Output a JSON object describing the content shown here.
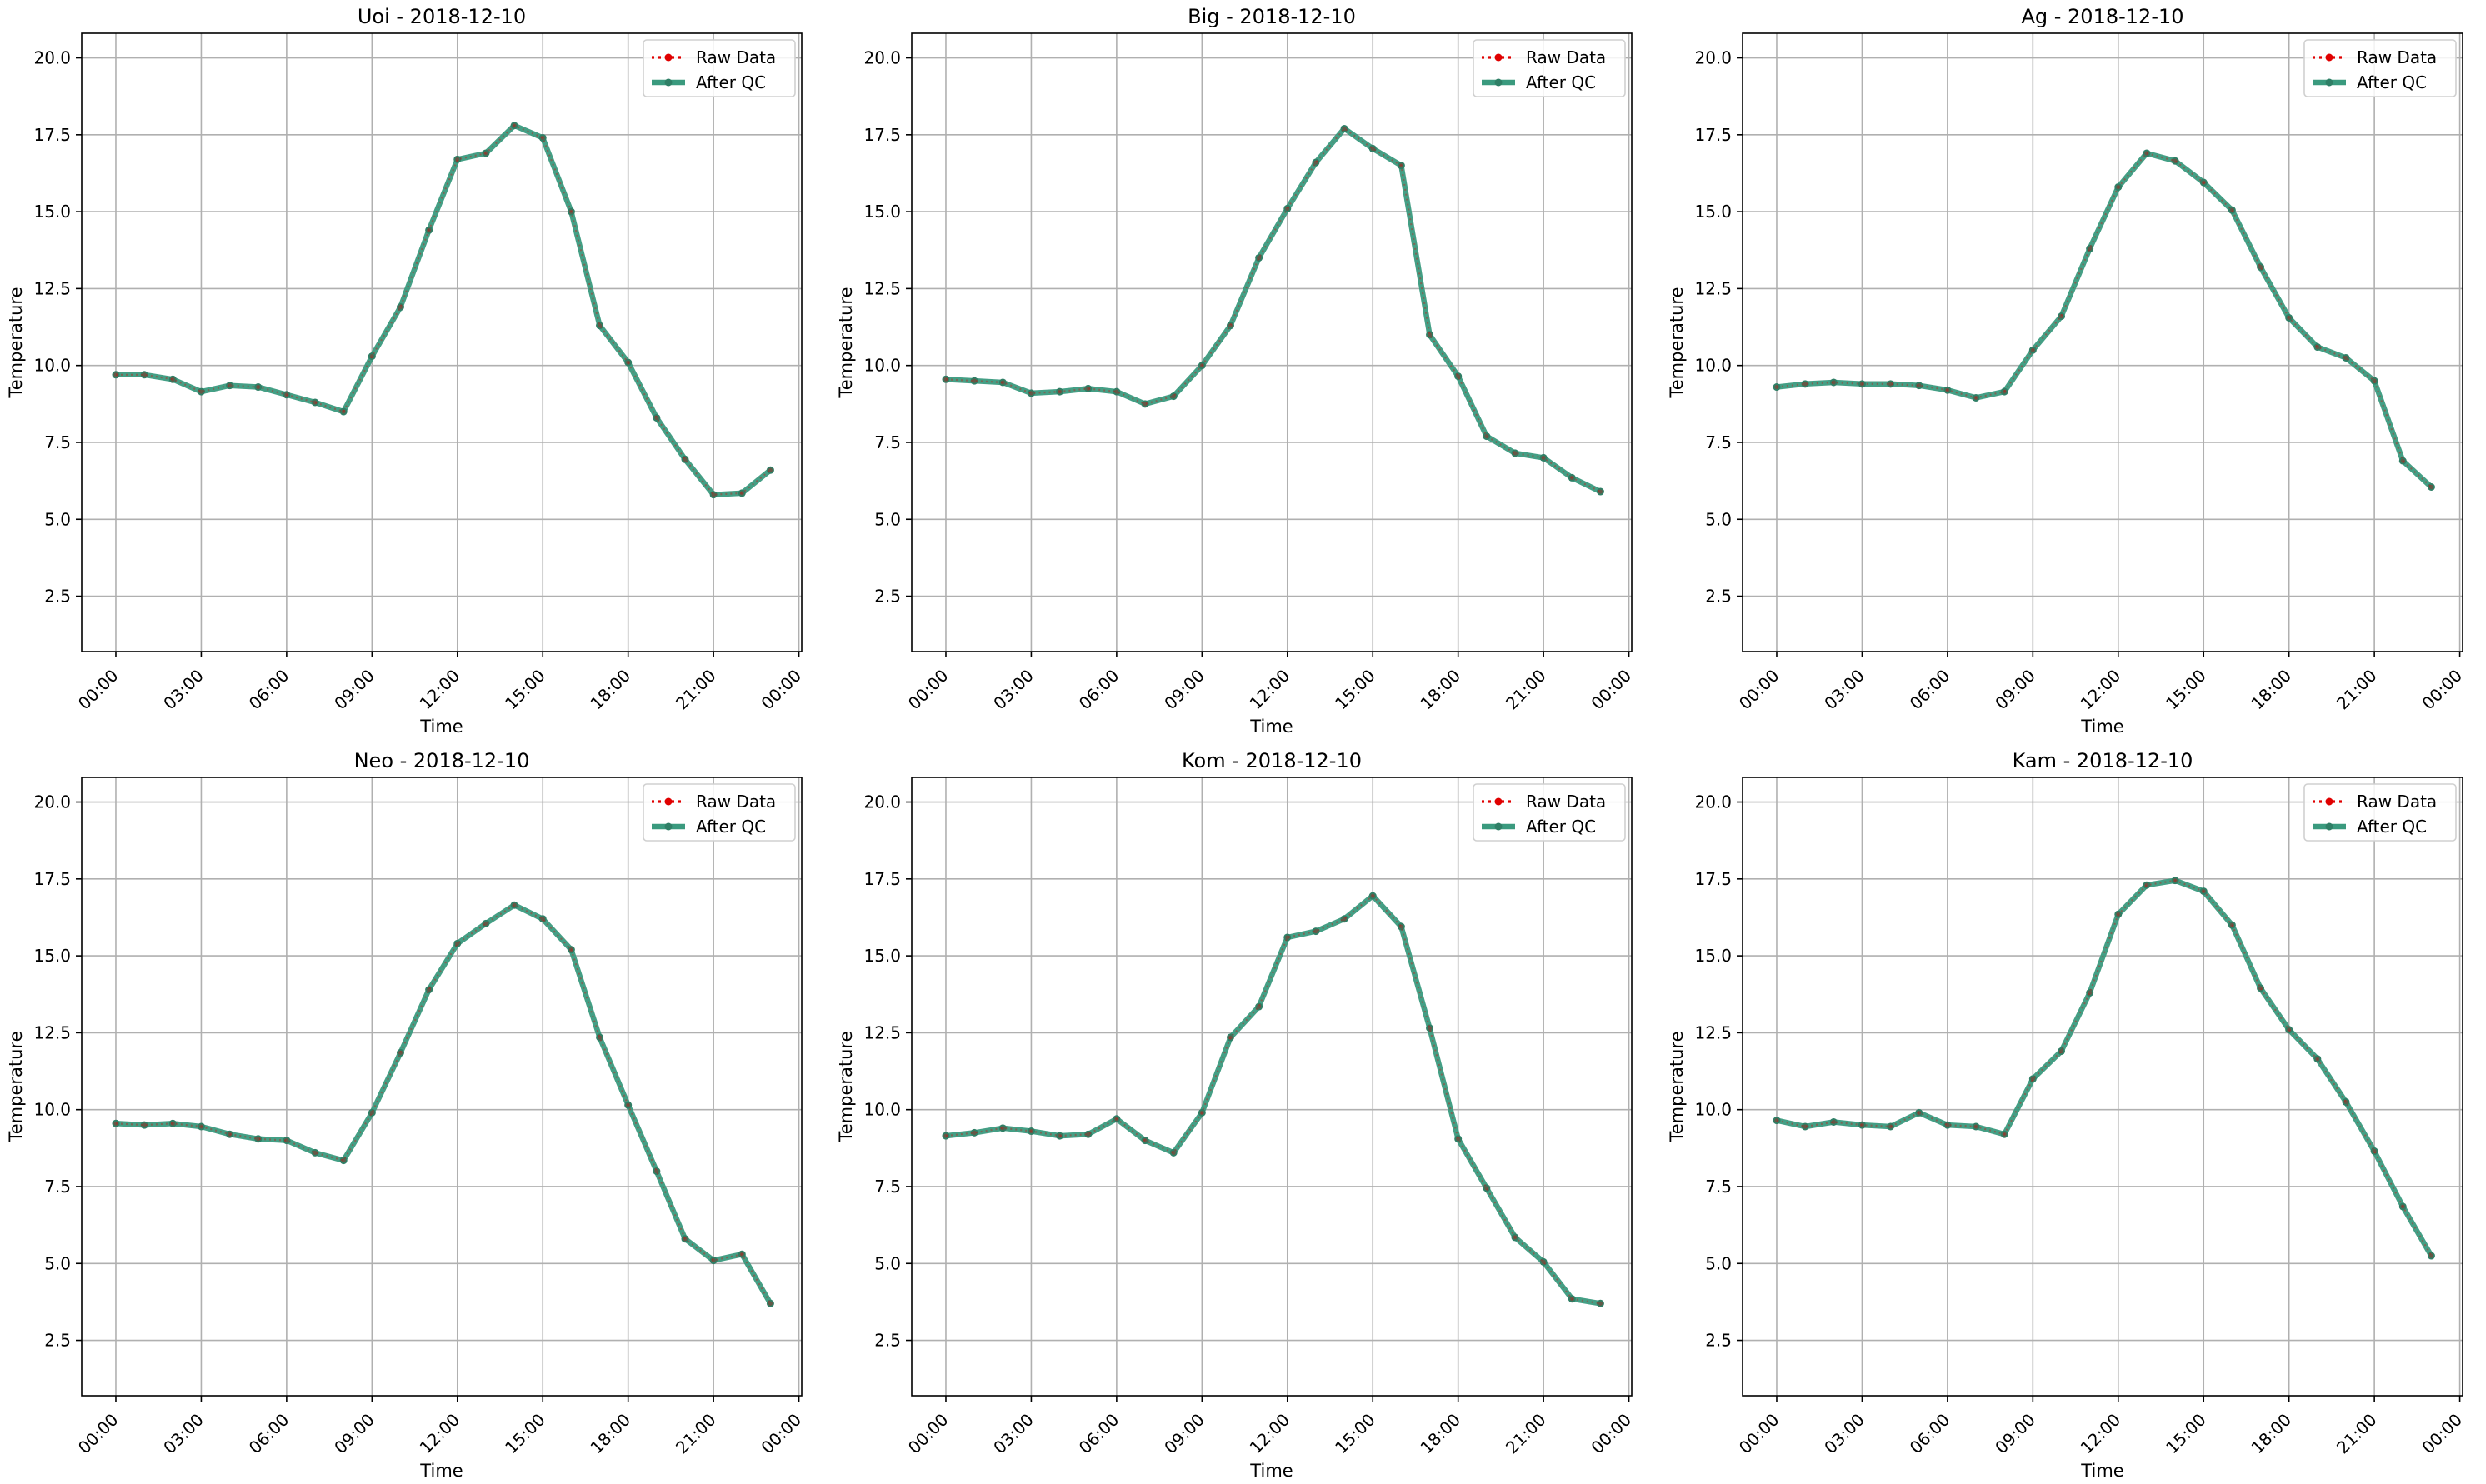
{
  "figure": {
    "legend_labels": [
      "Raw Data",
      "After QC"
    ],
    "legend_placement": "top-right",
    "colors": {
      "raw": "#e00000",
      "qc": "#3a9a7e",
      "qc_marker": "#2f7f66",
      "grid": "#b0b0b0",
      "axis": "#000000"
    }
  },
  "chart_data": [
    {
      "type": "line",
      "title": "Uoi - 2018-12-10",
      "xlabel": "Time",
      "ylabel": "Temperature",
      "xlim": [
        -1.2,
        24.1
      ],
      "ylim": [
        0.7,
        20.8
      ],
      "xticks": [
        0,
        3,
        6,
        9,
        12,
        15,
        18,
        21,
        24
      ],
      "xtick_labels": [
        "00:00",
        "03:00",
        "06:00",
        "09:00",
        "12:00",
        "15:00",
        "18:00",
        "21:00",
        "00:00"
      ],
      "yticks": [
        2.5,
        5.0,
        7.5,
        10.0,
        12.5,
        15.0,
        17.5,
        20.0
      ],
      "ytick_labels": [
        "2.5",
        "5.0",
        "7.5",
        "10.0",
        "12.5",
        "15.0",
        "17.5",
        "20.0"
      ],
      "grid": true,
      "x": [
        0,
        1,
        2,
        3,
        4,
        5,
        6,
        7,
        8,
        9,
        10,
        11,
        12,
        13,
        14,
        15,
        16,
        17,
        18,
        19,
        20,
        21,
        22,
        23
      ],
      "series": [
        {
          "name": "Raw Data",
          "values": [
            9.7,
            9.7,
            9.55,
            9.15,
            9.35,
            9.3,
            9.05,
            8.8,
            8.5,
            10.3,
            11.9,
            14.4,
            16.7,
            16.9,
            17.8,
            17.4,
            15.0,
            11.3,
            10.1,
            8.3,
            6.95,
            5.8,
            5.85,
            6.6
          ]
        },
        {
          "name": "After QC",
          "values": [
            9.7,
            9.7,
            9.55,
            9.15,
            9.35,
            9.3,
            9.05,
            8.8,
            8.5,
            10.3,
            11.9,
            14.4,
            16.7,
            16.9,
            17.8,
            17.4,
            15.0,
            11.3,
            10.1,
            8.3,
            6.95,
            5.8,
            5.85,
            6.6
          ]
        }
      ]
    },
    {
      "type": "line",
      "title": "Big - 2018-12-10",
      "xlabel": "Time",
      "ylabel": "Temperature",
      "xlim": [
        -1.2,
        24.1
      ],
      "ylim": [
        0.7,
        20.8
      ],
      "xticks": [
        0,
        3,
        6,
        9,
        12,
        15,
        18,
        21,
        24
      ],
      "xtick_labels": [
        "00:00",
        "03:00",
        "06:00",
        "09:00",
        "12:00",
        "15:00",
        "18:00",
        "21:00",
        "00:00"
      ],
      "yticks": [
        2.5,
        5.0,
        7.5,
        10.0,
        12.5,
        15.0,
        17.5,
        20.0
      ],
      "ytick_labels": [
        "2.5",
        "5.0",
        "7.5",
        "10.0",
        "12.5",
        "15.0",
        "17.5",
        "20.0"
      ],
      "grid": true,
      "x": [
        0,
        1,
        2,
        3,
        4,
        5,
        6,
        7,
        8,
        9,
        10,
        11,
        12,
        13,
        14,
        15,
        16,
        17,
        18,
        19,
        20,
        21,
        22,
        23
      ],
      "series": [
        {
          "name": "Raw Data",
          "values": [
            9.55,
            9.5,
            9.45,
            9.1,
            9.15,
            9.25,
            9.15,
            8.75,
            9.0,
            10.0,
            11.3,
            13.5,
            15.1,
            16.6,
            17.7,
            17.05,
            16.5,
            11.0,
            9.65,
            7.7,
            7.15,
            7.0,
            6.35,
            5.9
          ]
        },
        {
          "name": "After QC",
          "values": [
            9.55,
            9.5,
            9.45,
            9.1,
            9.15,
            9.25,
            9.15,
            8.75,
            9.0,
            10.0,
            11.3,
            13.5,
            15.1,
            16.6,
            17.7,
            17.05,
            16.5,
            11.0,
            9.65,
            7.7,
            7.15,
            7.0,
            6.35,
            5.9
          ]
        }
      ]
    },
    {
      "type": "line",
      "title": "Ag - 2018-12-10",
      "xlabel": "Time",
      "ylabel": "Temperature",
      "xlim": [
        -1.2,
        24.1
      ],
      "ylim": [
        0.7,
        20.8
      ],
      "xticks": [
        0,
        3,
        6,
        9,
        12,
        15,
        18,
        21,
        24
      ],
      "xtick_labels": [
        "00:00",
        "03:00",
        "06:00",
        "09:00",
        "12:00",
        "15:00",
        "18:00",
        "21:00",
        "00:00"
      ],
      "yticks": [
        2.5,
        5.0,
        7.5,
        10.0,
        12.5,
        15.0,
        17.5,
        20.0
      ],
      "ytick_labels": [
        "2.5",
        "5.0",
        "7.5",
        "10.0",
        "12.5",
        "15.0",
        "17.5",
        "20.0"
      ],
      "grid": true,
      "x": [
        0,
        1,
        2,
        3,
        4,
        5,
        6,
        7,
        8,
        9,
        10,
        11,
        12,
        13,
        14,
        15,
        16,
        17,
        18,
        19,
        20,
        21,
        22,
        23
      ],
      "series": [
        {
          "name": "Raw Data",
          "values": [
            9.3,
            9.4,
            9.45,
            9.4,
            9.4,
            9.35,
            9.2,
            8.95,
            9.15,
            10.5,
            11.6,
            13.8,
            15.8,
            16.9,
            16.65,
            15.95,
            15.05,
            13.2,
            11.55,
            10.6,
            10.25,
            9.5,
            6.9,
            6.05
          ]
        },
        {
          "name": "After QC",
          "values": [
            9.3,
            9.4,
            9.45,
            9.4,
            9.4,
            9.35,
            9.2,
            8.95,
            9.15,
            10.5,
            11.6,
            13.8,
            15.8,
            16.9,
            16.65,
            15.95,
            15.05,
            13.2,
            11.55,
            10.6,
            10.25,
            9.5,
            6.9,
            6.05
          ]
        }
      ]
    },
    {
      "type": "line",
      "title": "Neo - 2018-12-10",
      "xlabel": "Time",
      "ylabel": "Temperature",
      "xlim": [
        -1.2,
        24.1
      ],
      "ylim": [
        0.7,
        20.8
      ],
      "xticks": [
        0,
        3,
        6,
        9,
        12,
        15,
        18,
        21,
        24
      ],
      "xtick_labels": [
        "00:00",
        "03:00",
        "06:00",
        "09:00",
        "12:00",
        "15:00",
        "18:00",
        "21:00",
        "00:00"
      ],
      "yticks": [
        2.5,
        5.0,
        7.5,
        10.0,
        12.5,
        15.0,
        17.5,
        20.0
      ],
      "ytick_labels": [
        "2.5",
        "5.0",
        "7.5",
        "10.0",
        "12.5",
        "15.0",
        "17.5",
        "20.0"
      ],
      "grid": true,
      "x": [
        0,
        1,
        2,
        3,
        4,
        5,
        6,
        7,
        8,
        9,
        10,
        11,
        12,
        13,
        14,
        15,
        16,
        17,
        18,
        19,
        20,
        21,
        22,
        23
      ],
      "series": [
        {
          "name": "Raw Data",
          "values": [
            9.55,
            9.5,
            9.55,
            9.45,
            9.2,
            9.05,
            9.0,
            8.6,
            8.35,
            9.9,
            11.85,
            13.9,
            15.4,
            16.05,
            16.65,
            16.2,
            15.2,
            12.35,
            10.15,
            8.0,
            5.8,
            5.1,
            5.3,
            3.7
          ]
        },
        {
          "name": "After QC",
          "values": [
            9.55,
            9.5,
            9.55,
            9.45,
            9.2,
            9.05,
            9.0,
            8.6,
            8.35,
            9.9,
            11.85,
            13.9,
            15.4,
            16.05,
            16.65,
            16.2,
            15.2,
            12.35,
            10.15,
            8.0,
            5.8,
            5.1,
            5.3,
            3.7
          ]
        }
      ]
    },
    {
      "type": "line",
      "title": "Kom - 2018-12-10",
      "xlabel": "Time",
      "ylabel": "Temperature",
      "xlim": [
        -1.2,
        24.1
      ],
      "ylim": [
        0.7,
        20.8
      ],
      "xticks": [
        0,
        3,
        6,
        9,
        12,
        15,
        18,
        21,
        24
      ],
      "xtick_labels": [
        "00:00",
        "03:00",
        "06:00",
        "09:00",
        "12:00",
        "15:00",
        "18:00",
        "21:00",
        "00:00"
      ],
      "yticks": [
        2.5,
        5.0,
        7.5,
        10.0,
        12.5,
        15.0,
        17.5,
        20.0
      ],
      "ytick_labels": [
        "2.5",
        "5.0",
        "7.5",
        "10.0",
        "12.5",
        "15.0",
        "17.5",
        "20.0"
      ],
      "grid": true,
      "x": [
        0,
        1,
        2,
        3,
        4,
        5,
        6,
        7,
        8,
        9,
        10,
        11,
        12,
        13,
        14,
        15,
        16,
        17,
        18,
        19,
        20,
        21,
        22,
        23
      ],
      "series": [
        {
          "name": "Raw Data",
          "values": [
            9.15,
            9.25,
            9.4,
            9.3,
            9.15,
            9.2,
            9.7,
            9.0,
            8.6,
            9.9,
            12.35,
            13.35,
            15.6,
            15.8,
            16.2,
            16.95,
            15.95,
            12.65,
            9.05,
            7.45,
            5.85,
            5.05,
            3.85,
            3.7
          ]
        },
        {
          "name": "After QC",
          "values": [
            9.15,
            9.25,
            9.4,
            9.3,
            9.15,
            9.2,
            9.7,
            9.0,
            8.6,
            9.9,
            12.35,
            13.35,
            15.6,
            15.8,
            16.2,
            16.95,
            15.95,
            12.65,
            9.05,
            7.45,
            5.85,
            5.05,
            3.85,
            3.7
          ]
        }
      ]
    },
    {
      "type": "line",
      "title": "Kam - 2018-12-10",
      "xlabel": "Time",
      "ylabel": "Temperature",
      "xlim": [
        -1.2,
        24.1
      ],
      "ylim": [
        0.7,
        20.8
      ],
      "xticks": [
        0,
        3,
        6,
        9,
        12,
        15,
        18,
        21,
        24
      ],
      "xtick_labels": [
        "00:00",
        "03:00",
        "06:00",
        "09:00",
        "12:00",
        "15:00",
        "18:00",
        "21:00",
        "00:00"
      ],
      "yticks": [
        2.5,
        5.0,
        7.5,
        10.0,
        12.5,
        15.0,
        17.5,
        20.0
      ],
      "ytick_labels": [
        "2.5",
        "5.0",
        "7.5",
        "10.0",
        "12.5",
        "15.0",
        "17.5",
        "20.0"
      ],
      "grid": true,
      "x": [
        0,
        1,
        2,
        3,
        4,
        5,
        6,
        7,
        8,
        9,
        10,
        11,
        12,
        13,
        14,
        15,
        16,
        17,
        18,
        19,
        20,
        21,
        22,
        23
      ],
      "series": [
        {
          "name": "Raw Data",
          "values": [
            9.65,
            9.45,
            9.6,
            9.5,
            9.45,
            9.9,
            9.5,
            9.45,
            9.2,
            11.0,
            11.9,
            13.8,
            16.35,
            17.3,
            17.45,
            17.1,
            16.0,
            13.95,
            12.6,
            11.65,
            10.25,
            8.65,
            6.85,
            5.25
          ]
        },
        {
          "name": "After QC",
          "values": [
            9.65,
            9.45,
            9.6,
            9.5,
            9.45,
            9.9,
            9.5,
            9.45,
            9.2,
            11.0,
            11.9,
            13.8,
            16.35,
            17.3,
            17.45,
            17.1,
            16.0,
            13.95,
            12.6,
            11.65,
            10.25,
            8.65,
            6.85,
            5.25
          ]
        }
      ]
    }
  ]
}
